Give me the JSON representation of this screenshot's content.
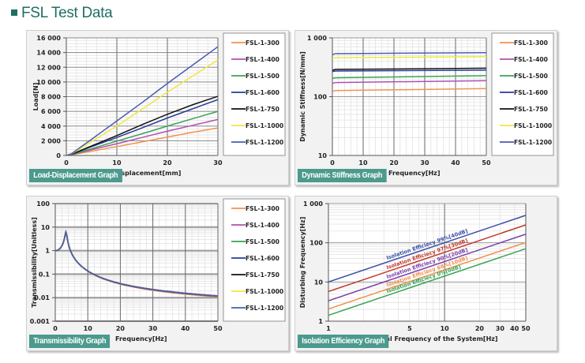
{
  "page": {
    "title": "FSL Test Data"
  },
  "series_colors": {
    "FSL-1-300": "#f0924f",
    "FSL-1-400": "#b04fb0",
    "FSL-1-500": "#3aa354",
    "FSL-1-600": "#2a3a9a",
    "FSL-1-750": "#111111",
    "FSL-1-1000": "#f2e640",
    "FSL-1-1200": "#4a5bb0"
  },
  "chart_data": [
    {
      "id": "load-displacement",
      "type": "line",
      "caption": "Load-Displacement Graph",
      "xlabel": "Displacement[mm]",
      "ylabel": "Load[N]",
      "xlim": [
        0,
        30
      ],
      "ylim": [
        0,
        16000
      ],
      "yscale": "linear",
      "xticks": [
        "0",
        "10",
        "20",
        "30"
      ],
      "yticks": [
        "0",
        "2 000",
        "4 000",
        "6 000",
        "8 000",
        "10 000",
        "12 000",
        "14 000",
        "16 000"
      ],
      "grid": true,
      "legend": "right",
      "x": [
        0,
        1,
        5,
        10,
        15,
        20,
        25,
        30
      ],
      "series": [
        {
          "name": "FSL-1-300",
          "values": [
            0,
            80,
            580,
            1200,
            1850,
            2500,
            3150,
            3750
          ]
        },
        {
          "name": "FSL-1-400",
          "values": [
            0,
            100,
            780,
            1600,
            2450,
            3300,
            4100,
            4900
          ]
        },
        {
          "name": "FSL-1-500",
          "values": [
            0,
            120,
            920,
            1950,
            2950,
            4000,
            5000,
            6000
          ]
        },
        {
          "name": "FSL-1-600",
          "values": [
            0,
            140,
            1200,
            2450,
            3750,
            5100,
            6350,
            7600
          ]
        },
        {
          "name": "FSL-1-750",
          "values": [
            0,
            150,
            1300,
            2700,
            4200,
            5600,
            6900,
            8050
          ]
        },
        {
          "name": "FSL-1-1000",
          "values": [
            0,
            200,
            1900,
            4000,
            6300,
            8600,
            10800,
            13000
          ]
        },
        {
          "name": "FSL-1-1200",
          "values": [
            0,
            230,
            2200,
            4700,
            7200,
            9800,
            12300,
            14800
          ]
        }
      ]
    },
    {
      "id": "dynamic-stiffness",
      "type": "line",
      "caption": "Dynamic Stiffness Graph",
      "xlabel": "Frequency[Hz]",
      "ylabel": "Dynamic Stiffness[N/mm]",
      "xlim": [
        0,
        50
      ],
      "ylim": [
        10,
        1000
      ],
      "yscale": "log",
      "xticks": [
        "0",
        "10",
        "20",
        "30",
        "40",
        "50"
      ],
      "yticks": [
        "10",
        "100",
        "1 000"
      ],
      "grid": true,
      "legend": "right",
      "x": [
        0,
        1,
        50
      ],
      "series": [
        {
          "name": "FSL-1-300",
          "values": [
            123,
            127,
            137
          ]
        },
        {
          "name": "FSL-1-400",
          "values": [
            168,
            174,
            187
          ]
        },
        {
          "name": "FSL-1-500",
          "values": [
            205,
            210,
            228
          ]
        },
        {
          "name": "FSL-1-600",
          "values": [
            268,
            273,
            283
          ]
        },
        {
          "name": "FSL-1-750",
          "values": [
            280,
            290,
            305
          ]
        },
        {
          "name": "FSL-1-1000",
          "values": [
            445,
            460,
            478
          ]
        },
        {
          "name": "FSL-1-1200",
          "values": [
            520,
            540,
            560
          ]
        }
      ]
    },
    {
      "id": "transmissibility",
      "type": "line",
      "caption": "Transmissibility Graph",
      "xlabel": "Frequency[Hz]",
      "ylabel": "Transmissibility[Unitless]",
      "xlim": [
        0,
        50
      ],
      "ylim": [
        0.001,
        100
      ],
      "yscale": "log",
      "xticks": [
        "0",
        "10",
        "20",
        "30",
        "40",
        "50"
      ],
      "yticks": [
        "0.001",
        "0.01",
        "0.1",
        "1",
        "10",
        "100"
      ],
      "grid": true,
      "legend": "right",
      "x": [
        0,
        1,
        2,
        2.5,
        3,
        3.5,
        4,
        5,
        6,
        8,
        10,
        15,
        20,
        25,
        30,
        35,
        40,
        45,
        50
      ],
      "series": [
        {
          "name": "FSL-1-300",
          "values": [
            1,
            1.1,
            1.6,
            2.6,
            6.8,
            2.3,
            1.2,
            0.6,
            0.38,
            0.18,
            0.122,
            0.05,
            0.028,
            0.018,
            0.0122,
            0.009,
            0.0069,
            0.0054,
            0.0044
          ]
        },
        {
          "name": "FSL-1-400",
          "values": [
            1,
            1.1,
            1.6,
            2.6,
            6.4,
            2.3,
            1.2,
            0.6,
            0.38,
            0.18,
            0.122,
            0.05,
            0.028,
            0.018,
            0.0122,
            0.009,
            0.0069,
            0.0054,
            0.0044
          ]
        },
        {
          "name": "FSL-1-500",
          "values": [
            1,
            1.1,
            1.6,
            2.6,
            6.2,
            2.3,
            1.2,
            0.6,
            0.38,
            0.18,
            0.122,
            0.05,
            0.028,
            0.018,
            0.0122,
            0.009,
            0.0069,
            0.0054,
            0.0044
          ]
        },
        {
          "name": "FSL-1-600",
          "values": [
            1,
            1.1,
            1.6,
            2.6,
            6.0,
            2.3,
            1.2,
            0.6,
            0.38,
            0.18,
            0.122,
            0.05,
            0.028,
            0.018,
            0.0122,
            0.009,
            0.0069,
            0.0054,
            0.0044
          ]
        },
        {
          "name": "FSL-1-750",
          "values": [
            1,
            1.1,
            1.6,
            2.6,
            6.0,
            2.3,
            1.2,
            0.6,
            0.38,
            0.18,
            0.122,
            0.05,
            0.028,
            0.018,
            0.0122,
            0.009,
            0.0069,
            0.0054,
            0.0044
          ]
        },
        {
          "name": "FSL-1-1000",
          "values": [
            1,
            1.1,
            1.6,
            2.6,
            6.0,
            2.3,
            1.2,
            0.6,
            0.38,
            0.18,
            0.122,
            0.05,
            0.028,
            0.018,
            0.0122,
            0.009,
            0.0069,
            0.0054,
            0.0044
          ]
        },
        {
          "name": "FSL-1-1200",
          "values": [
            1,
            1.1,
            1.6,
            2.6,
            6.0,
            2.3,
            1.2,
            0.6,
            0.38,
            0.18,
            0.122,
            0.05,
            0.028,
            0.018,
            0.0122,
            0.009,
            0.0069,
            0.0054,
            0.0044
          ]
        }
      ]
    },
    {
      "id": "isolation-efficiency",
      "type": "line",
      "caption": "Isolation Efficiency Graph",
      "xlabel": "Natural Frequency of the System[Hz]",
      "ylabel": "Disturbing Frequency[Hz]",
      "xlim": [
        1,
        50
      ],
      "ylim": [
        1,
        1000
      ],
      "xscale": "log",
      "yscale": "log",
      "xticks": [
        "1",
        "5",
        "10",
        "20",
        "30",
        "40",
        "50"
      ],
      "xtick_values": [
        1,
        5,
        10,
        20,
        30,
        40,
        50
      ],
      "yticks": [
        "1",
        "10",
        "100",
        "1 000"
      ],
      "grid": true,
      "legend": "none",
      "x": [
        1,
        50
      ],
      "series": [
        {
          "name": "Isolation Efficiecy 99%[40dB]",
          "color": "#3a4fa8",
          "values": [
            10.05,
            502
          ]
        },
        {
          "name": "Isolation Efficiecy 97%[30dB]",
          "color": "#c0382b",
          "values": [
            5.71,
            286
          ]
        },
        {
          "name": "Isolation Efficiecy 90%[20dB]",
          "color": "#7a3fa8",
          "values": [
            3.32,
            166
          ]
        },
        {
          "name": "Isolation Efficiecy 68%[10dB]",
          "color": "#f0924f",
          "values": [
            2.05,
            102
          ]
        },
        {
          "name": "Isolation Efficiecy 0%[0dB]",
          "color": "#3aa354",
          "values": [
            1.414,
            70.7
          ]
        }
      ]
    }
  ]
}
